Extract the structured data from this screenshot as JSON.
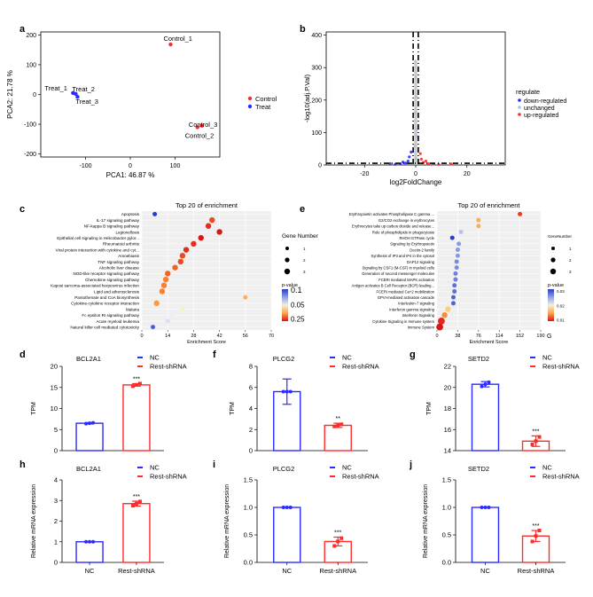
{
  "colors": {
    "red": "#ff2a2a",
    "blue": "#2b2bff",
    "black": "#000000",
    "lightblue": "#9fc3ff",
    "grey": "#bdbdbd"
  },
  "chart_data": [
    {
      "id": "a",
      "type": "scatter",
      "panel_label": "a",
      "xlabel": "PCA1: 46.87 %",
      "ylabel": "PCA2: 21.78 %",
      "xlim": [
        -200,
        200
      ],
      "ylim": [
        -210,
        210
      ],
      "xticks": [
        -100,
        0,
        100
      ],
      "yticks": [
        -200,
        -100,
        0,
        100,
        200
      ],
      "legend": [
        {
          "label": "Control",
          "color": "red"
        },
        {
          "label": "Treat",
          "color": "blue"
        }
      ],
      "points": [
        {
          "x": 90,
          "y": 168,
          "group": "Control",
          "label": "Control_1"
        },
        {
          "x": 150,
          "y": -110,
          "group": "Control",
          "label": "Control_2"
        },
        {
          "x": 160,
          "y": -105,
          "group": "Control",
          "label": "Control_3"
        },
        {
          "x": -128,
          "y": 5,
          "group": "Treat",
          "label": "Treat_1"
        },
        {
          "x": -122,
          "y": 2,
          "group": "Treat",
          "label": "Treat_2"
        },
        {
          "x": -118,
          "y": -8,
          "group": "Treat",
          "label": "Treat_3"
        }
      ]
    },
    {
      "id": "b",
      "type": "scatter",
      "panel_label": "b",
      "xlabel": "log2FoldChange",
      "ylabel": "-log10(adj.P.Val)",
      "xlim": [
        -35,
        35
      ],
      "ylim": [
        0,
        410
      ],
      "xticks": [
        -20,
        0,
        20
      ],
      "yticks": [
        0,
        100,
        200,
        300,
        400
      ],
      "legend_title": "regulate",
      "legend": [
        {
          "label": "down-regulated",
          "color": "blue"
        },
        {
          "label": "unchanged",
          "color": "lightblue"
        },
        {
          "label": "up-regulated",
          "color": "red"
        }
      ],
      "threshold_x": [
        -1,
        1
      ],
      "threshold_y": 1.3,
      "points": [
        {
          "x": -4,
          "y": 6,
          "group": "down"
        },
        {
          "x": -6,
          "y": 3,
          "group": "down"
        },
        {
          "x": -3,
          "y": 12,
          "group": "down"
        },
        {
          "x": -8,
          "y": 2,
          "group": "down"
        },
        {
          "x": -2.5,
          "y": 25,
          "group": "down"
        },
        {
          "x": -5,
          "y": 9,
          "group": "down"
        },
        {
          "x": -1.8,
          "y": 40,
          "group": "down"
        },
        {
          "x": -10,
          "y": 4,
          "group": "down"
        },
        {
          "x": 0.1,
          "y": 20,
          "group": "unchanged"
        },
        {
          "x": -0.3,
          "y": 60,
          "group": "unchanged"
        },
        {
          "x": 0.4,
          "y": 110,
          "group": "unchanged"
        },
        {
          "x": -0.2,
          "y": 160,
          "group": "unchanged"
        },
        {
          "x": 0.2,
          "y": 210,
          "group": "unchanged"
        },
        {
          "x": 0.0,
          "y": 270,
          "group": "unchanged"
        },
        {
          "x": -0.1,
          "y": 320,
          "group": "unchanged"
        },
        {
          "x": 0.3,
          "y": 90,
          "group": "unchanged"
        },
        {
          "x": 3,
          "y": 8,
          "group": "up"
        },
        {
          "x": 5,
          "y": 4,
          "group": "up"
        },
        {
          "x": 2.2,
          "y": 18,
          "group": "up"
        },
        {
          "x": 7,
          "y": 3,
          "group": "up"
        },
        {
          "x": 1.8,
          "y": 35,
          "group": "up"
        },
        {
          "x": 4,
          "y": 12,
          "group": "up"
        },
        {
          "x": 9,
          "y": 2,
          "group": "up"
        },
        {
          "x": 14,
          "y": 3,
          "group": "up"
        }
      ]
    },
    {
      "id": "c",
      "type": "scatter",
      "subtype": "dotplot",
      "panel_label": "c",
      "title": "Top 20 of enrichment",
      "xlabel": "Enrichment Score",
      "xlim": [
        0,
        70
      ],
      "xticks": [
        0,
        14,
        28,
        42,
        56,
        70
      ],
      "size_legend_title": "Gene Number",
      "size_legend": [
        "1",
        "2",
        "3"
      ],
      "color_legend_title": "p-value",
      "color_legend_ticks": [
        "0.1",
        "0.05",
        "0.25"
      ],
      "terms": [
        {
          "name": "Apoptosis",
          "score": 7,
          "genes": 1,
          "p": 0.02
        },
        {
          "name": "IL-17 signaling pathway",
          "score": 38,
          "genes": 2,
          "p": 0.22
        },
        {
          "name": "NF-kappa B signaling pathway",
          "score": 36,
          "genes": 2,
          "p": 0.23
        },
        {
          "name": "Legionellosis",
          "score": 42,
          "genes": 2,
          "p": 0.24
        },
        {
          "name": "Epithelial cell signaling in Helicobacter pylor...",
          "score": 32,
          "genes": 2,
          "p": 0.24
        },
        {
          "name": "Rheumatoid arthritis",
          "score": 28,
          "genes": 2,
          "p": 0.23
        },
        {
          "name": "Viral protein interaction with cytokine and cyt...",
          "score": 24,
          "genes": 2,
          "p": 0.23
        },
        {
          "name": "Amoebiasis",
          "score": 22,
          "genes": 2,
          "p": 0.22
        },
        {
          "name": "TNF signaling pathway",
          "score": 21,
          "genes": 2,
          "p": 0.22
        },
        {
          "name": "Alcoholic liver disease",
          "score": 18,
          "genes": 2,
          "p": 0.21
        },
        {
          "name": "NOD-like receptor signaling pathway",
          "score": 14,
          "genes": 2,
          "p": 0.21
        },
        {
          "name": "Chemokine signaling pathway",
          "score": 13,
          "genes": 2,
          "p": 0.2
        },
        {
          "name": "Kaposi sarcoma-associated herpesvirus infection",
          "score": 12,
          "genes": 2,
          "p": 0.2
        },
        {
          "name": "Lipid and atherosclerosis",
          "score": 11,
          "genes": 2,
          "p": 0.2
        },
        {
          "name": "Pantothenate and CoA biosynthesis",
          "score": 56,
          "genes": 1,
          "p": 0.18
        },
        {
          "name": "Cytokine-cytokine receptor interaction",
          "score": 8,
          "genes": 2,
          "p": 0.19
        },
        {
          "name": "Malaria",
          "score": 22,
          "genes": 1,
          "p": 0.14
        },
        {
          "name": "Fc epsilon RI signaling pathway",
          "score": 16,
          "genes": 1,
          "p": 0.12
        },
        {
          "name": "Acute myeloid leukemia",
          "score": 14,
          "genes": 1,
          "p": 0.11
        },
        {
          "name": "Natural killer cell mediated cytotoxicity",
          "score": 6,
          "genes": 1,
          "p": 0.04
        }
      ]
    },
    {
      "id": "e",
      "type": "scatter",
      "subtype": "dotplot",
      "panel_label": "e",
      "title": "Top 20 of enrichment",
      "xlabel": "Enrichment Score",
      "xlim": [
        0,
        190
      ],
      "xticks": [
        0,
        38,
        76,
        114,
        152,
        190
      ],
      "xtick_labels": [
        "0",
        "38",
        "76",
        "114",
        "152",
        "190"
      ],
      "size_legend_title": "GeneNumber",
      "size_legend": [
        "1",
        "2",
        "3"
      ],
      "color_legend_title": "p-value",
      "color_legend_ticks": [
        "0.03",
        "0.02",
        "0.01"
      ],
      "corner_label": "G",
      "terms": [
        {
          "name": "Erythropoietin activates Phospholipase C gamma ...",
          "score": 152,
          "genes": 1,
          "p": 0.004
        },
        {
          "name": "G2/CO2 exchange in erythrocytes",
          "score": 76,
          "genes": 1,
          "p": 0.01
        },
        {
          "name": "Erythrocytes take up carbon dioxide and release...",
          "score": 76,
          "genes": 1,
          "p": 0.01
        },
        {
          "name": "Role of phospholipids in phagocytosis",
          "score": 44,
          "genes": 1,
          "p": 0.022
        },
        {
          "name": "RHOH GTPase cycle",
          "score": 28,
          "genes": 1,
          "p": 0.032
        },
        {
          "name": "Signaling by Erythropoietin",
          "score": 40,
          "genes": 1,
          "p": 0.025
        },
        {
          "name": "Dectin-2 family",
          "score": 38,
          "genes": 1,
          "p": 0.025
        },
        {
          "name": "Synthesis of IP3 and IP4 in the cytosol",
          "score": 38,
          "genes": 1,
          "p": 0.025
        },
        {
          "name": "DAP12 signaling",
          "score": 36,
          "genes": 1,
          "p": 0.026
        },
        {
          "name": "Signaling by CSF1 (M-CSF) in myeloid cells",
          "score": 36,
          "genes": 1,
          "p": 0.026
        },
        {
          "name": "Generation of second messenger molecules",
          "score": 34,
          "genes": 1,
          "p": 0.027
        },
        {
          "name": "FCERI mediated MAPK activation",
          "score": 34,
          "genes": 1,
          "p": 0.027
        },
        {
          "name": "Antigen activates B Cell Receptor (BCR) leading...",
          "score": 32,
          "genes": 1,
          "p": 0.028
        },
        {
          "name": "FCERI mediated Ca+2 mobilization",
          "score": 32,
          "genes": 1,
          "p": 0.028
        },
        {
          "name": "GPVI-mediated activation cascade",
          "score": 30,
          "genes": 1,
          "p": 0.029
        },
        {
          "name": "Interleukin-7 signaling",
          "score": 30,
          "genes": 1,
          "p": 0.029
        },
        {
          "name": "Interferon gamma signaling",
          "score": 20,
          "genes": 2,
          "p": 0.012
        },
        {
          "name": "Interferon Signaling",
          "score": 14,
          "genes": 2,
          "p": 0.008
        },
        {
          "name": "Cytokine Signaling in Immune system",
          "score": 8,
          "genes": 3,
          "p": 0.003
        },
        {
          "name": "Immune System",
          "score": 5,
          "genes": 3,
          "p": 0.002
        }
      ]
    },
    {
      "id": "d",
      "type": "bar",
      "panel_label": "d",
      "title": "BCL2A1",
      "ylabel": "TPM",
      "ylim": [
        0,
        20
      ],
      "yticks": [
        0,
        5,
        10,
        15,
        20
      ],
      "categories": [
        "NC",
        "Rest-shRNA"
      ],
      "show_xticklabels": false,
      "series": [
        {
          "name": "NC",
          "color": "blue",
          "value": 6.5,
          "error": 0.15,
          "points": [
            6.4,
            6.5,
            6.6
          ]
        },
        {
          "name": "Rest-shRNA",
          "color": "red",
          "value": 15.6,
          "error": 0.3,
          "points": [
            15.3,
            15.6,
            15.9
          ]
        }
      ],
      "significance": "***"
    },
    {
      "id": "f",
      "type": "bar",
      "panel_label": "f",
      "title": "PLCG2",
      "ylabel": "TPM",
      "ylim": [
        0,
        8
      ],
      "yticks": [
        0,
        2,
        4,
        6,
        8
      ],
      "categories": [
        "NC",
        "Rest-shRNA"
      ],
      "show_xticklabels": false,
      "series": [
        {
          "name": "NC",
          "color": "blue",
          "value": 5.6,
          "error": 1.2,
          "points": [
            5.6,
            5.6,
            5.6
          ]
        },
        {
          "name": "Rest-shRNA",
          "color": "red",
          "value": 2.4,
          "error": 0.2,
          "points": [
            2.3,
            2.4,
            2.5
          ]
        }
      ],
      "significance": "**"
    },
    {
      "id": "g",
      "type": "bar",
      "panel_label": "g",
      "title": "SETD2",
      "ylabel": "TPM",
      "ylim": [
        14,
        22
      ],
      "yticks": [
        14,
        16,
        18,
        20,
        22
      ],
      "categories": [
        "NC",
        "Rest-shRNA"
      ],
      "show_xticklabels": false,
      "series": [
        {
          "name": "NC",
          "color": "blue",
          "value": 20.3,
          "error": 0.25,
          "points": [
            20.1,
            20.3,
            20.5
          ]
        },
        {
          "name": "Rest-shRNA",
          "color": "red",
          "value": 14.9,
          "error": 0.5,
          "points": [
            14.6,
            14.9,
            15.3
          ]
        }
      ],
      "significance": "***"
    },
    {
      "id": "h",
      "type": "bar",
      "panel_label": "h",
      "title": "BCL2A1",
      "ylabel": "Relative mRNA expression",
      "ylim": [
        0,
        4
      ],
      "yticks": [
        0,
        1,
        2,
        3,
        4
      ],
      "categories": [
        "NC",
        "Rest-shRNA"
      ],
      "show_xticklabels": true,
      "series": [
        {
          "name": "NC",
          "color": "blue",
          "value": 1.0,
          "error": 0.0,
          "points": [
            1.0,
            1.0,
            1.0
          ]
        },
        {
          "name": "Rest-shRNA",
          "color": "red",
          "value": 2.85,
          "error": 0.12,
          "points": [
            2.75,
            2.85,
            2.95
          ]
        }
      ],
      "significance": "***"
    },
    {
      "id": "i",
      "type": "bar",
      "panel_label": "i",
      "title": "PLCG2",
      "ylabel": "Relative mRNA expression",
      "ylim": [
        0,
        1.5
      ],
      "yticks": [
        0.0,
        0.5,
        1.0,
        1.5
      ],
      "ytick_labels": [
        "0.0",
        "0.5",
        "1.0",
        "1.5"
      ],
      "categories": [
        "NC",
        "Rest-shRNA"
      ],
      "show_xticklabels": true,
      "series": [
        {
          "name": "NC",
          "color": "blue",
          "value": 1.0,
          "error": 0.0,
          "points": [
            1.0,
            1.0,
            1.0
          ]
        },
        {
          "name": "Rest-shRNA",
          "color": "red",
          "value": 0.38,
          "error": 0.08,
          "points": [
            0.3,
            0.38,
            0.44
          ]
        }
      ],
      "significance": "***"
    },
    {
      "id": "j",
      "type": "bar",
      "panel_label": "j",
      "title": "SETD2",
      "ylabel": "Relative mRNA expression",
      "ylim": [
        0,
        1.5
      ],
      "yticks": [
        0.0,
        0.5,
        1.0,
        1.5
      ],
      "ytick_labels": [
        "0.0",
        "0.5",
        "1.0",
        "1.5"
      ],
      "categories": [
        "NC",
        "Rest-shRNA"
      ],
      "show_xticklabels": true,
      "series": [
        {
          "name": "NC",
          "color": "blue",
          "value": 1.0,
          "error": 0.0,
          "points": [
            1.0,
            1.0,
            1.0
          ]
        },
        {
          "name": "Rest-shRNA",
          "color": "red",
          "value": 0.48,
          "error": 0.1,
          "points": [
            0.38,
            0.48,
            0.58
          ]
        }
      ],
      "significance": "***"
    }
  ]
}
